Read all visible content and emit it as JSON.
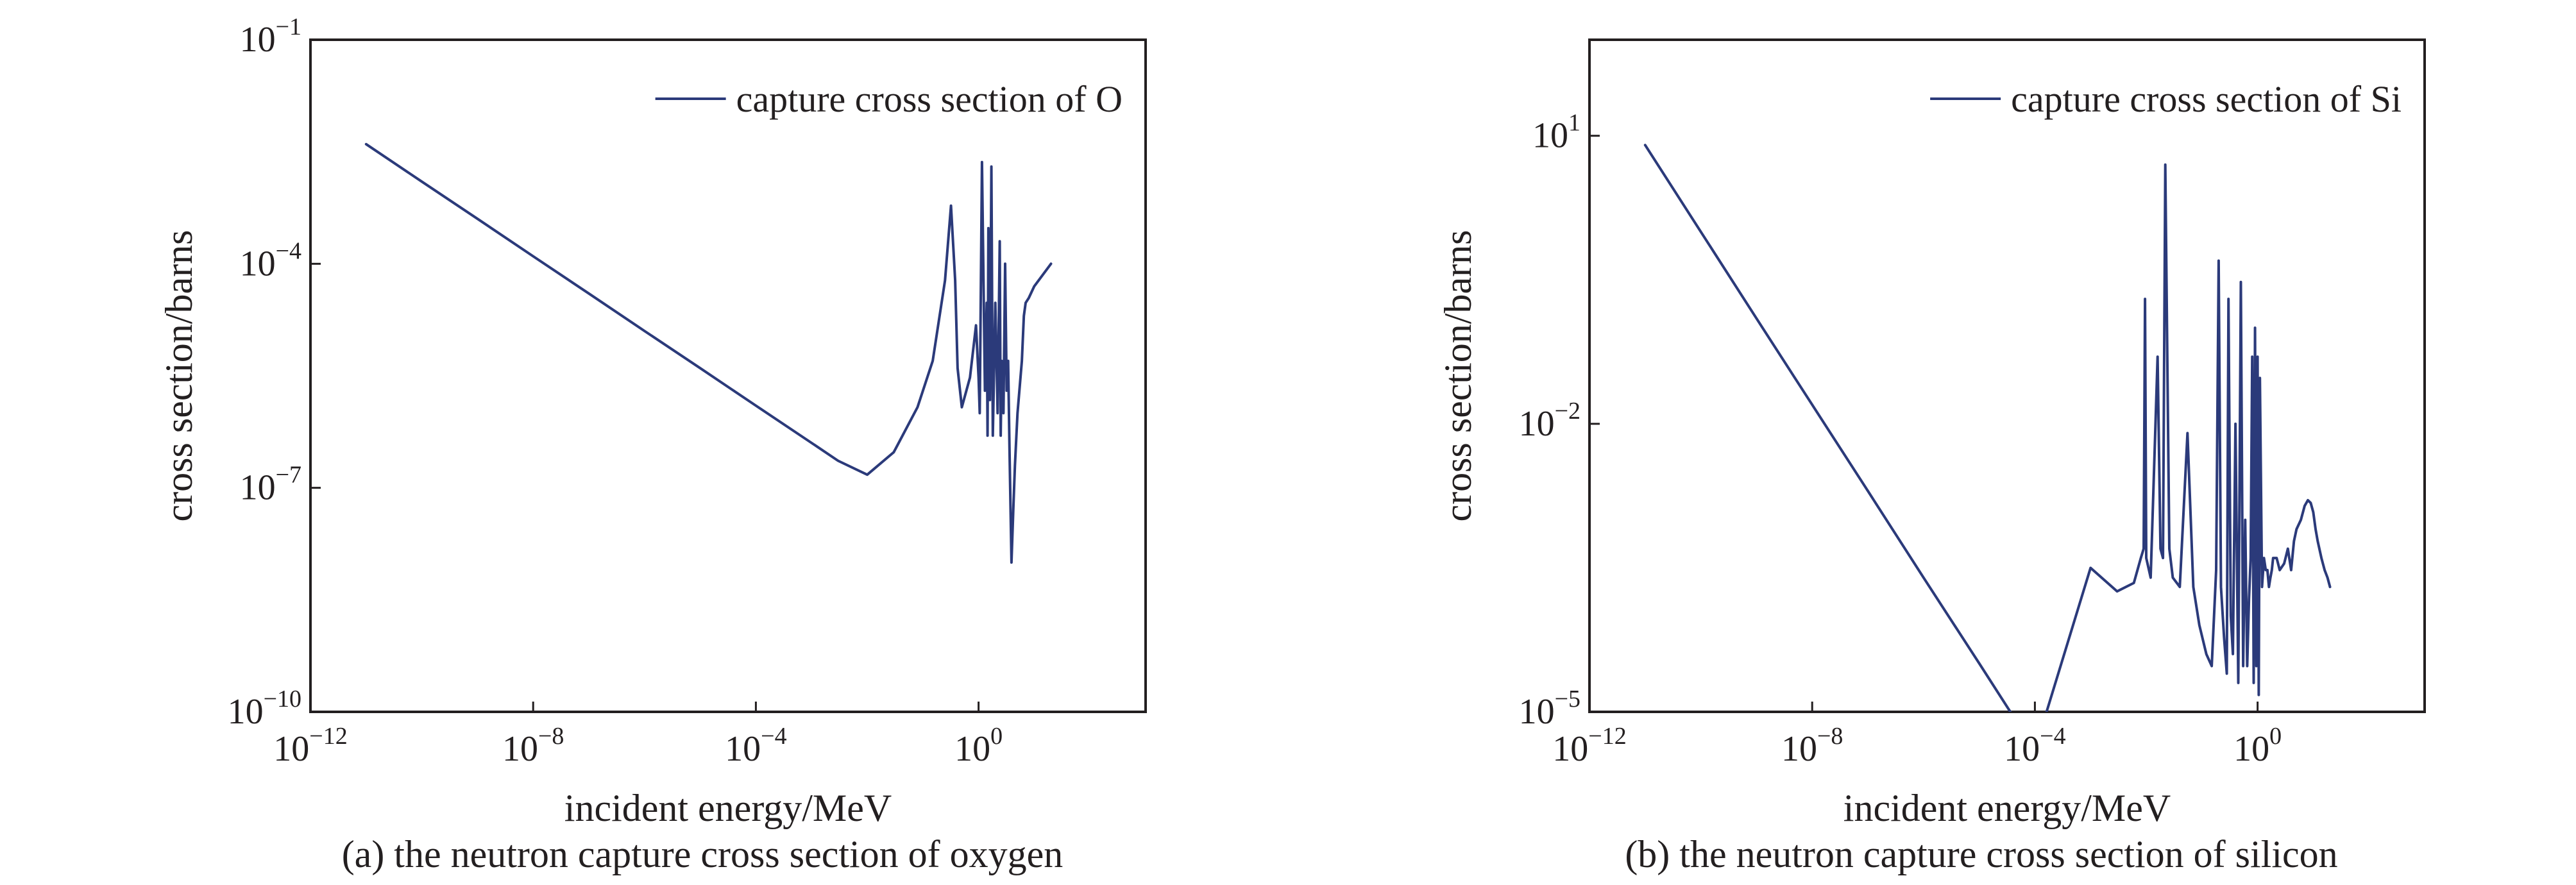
{
  "chart_data": [
    {
      "type": "line",
      "title": "",
      "caption": "(a) the neutron capture cross section of oxygen",
      "xlabel": "incident energy/MeV",
      "ylabel": "cross section/barns",
      "xscale": "log",
      "yscale": "log",
      "xlim": [
        1e-12,
        1000
      ],
      "ylim": [
        1e-10,
        0.1
      ],
      "xticks": [
        {
          "base": "10",
          "exp": "−12",
          "value": 1e-12
        },
        {
          "base": "10",
          "exp": "−8",
          "value": 1e-08
        },
        {
          "base": "10",
          "exp": "−4",
          "value": 0.0001
        },
        {
          "base": "10",
          "exp": "0",
          "value": 1
        }
      ],
      "yticks": [
        {
          "base": "10",
          "exp": "−10",
          "value": 1e-10
        },
        {
          "base": "10",
          "exp": "−7",
          "value": 1e-07
        },
        {
          "base": "10",
          "exp": "−4",
          "value": 0.0001
        },
        {
          "base": "10",
          "exp": "−1",
          "value": 0.1
        }
      ],
      "legend_position": "top-right",
      "color": "#2b3a7a",
      "series": [
        {
          "name": "capture cross section of O",
          "x": [
            1e-11,
            1e-10,
            1e-09,
            1e-08,
            1e-07,
            1e-06,
            1e-05,
            0.0001,
            0.001,
            0.003,
            0.01,
            0.03,
            0.08,
            0.15,
            0.25,
            0.32,
            0.38,
            0.42,
            0.5,
            0.7,
            0.9,
            1.0,
            1.05,
            1.15,
            1.3,
            1.4,
            1.45,
            1.5,
            1.6,
            1.7,
            1.8,
            2.0,
            2.2,
            2.4,
            2.5,
            2.6,
            2.8,
            3.0,
            3.2,
            3.4,
            3.6,
            3.9,
            4.2,
            4.5,
            5.0,
            6.0,
            6.5,
            7.0,
            8.0,
            10.0,
            20.0
          ],
          "y": [
            0.004,
            0.00126,
            0.0004,
            0.000126,
            4e-05,
            1.26e-05,
            4e-06,
            1.26e-06,
            4e-07,
            2.3e-07,
            1.5e-07,
            3e-07,
            1.2e-06,
            5e-06,
            6e-05,
            0.0006,
            6e-05,
            4e-06,
            1.2e-06,
            3e-06,
            1.5e-05,
            3e-06,
            1e-06,
            0.0023,
            2e-06,
            3e-05,
            5e-07,
            0.0003,
            1.5e-06,
            0.002,
            5e-07,
            3e-05,
            1e-06,
            0.0002,
            5e-07,
            5e-06,
            1e-06,
            0.0001,
            2e-06,
            5e-06,
            3e-07,
            1e-08,
            5e-08,
            2e-07,
            1e-06,
            5e-06,
            2e-05,
            3e-05,
            3.5e-05,
            5e-05,
            0.0001
          ]
        }
      ]
    },
    {
      "type": "line",
      "title": "",
      "caption": "(b) the neutron capture cross section of silicon",
      "xlabel": "incident energy/MeV",
      "ylabel": "cross section/barns",
      "xscale": "log",
      "yscale": "log",
      "xlim": [
        1e-12,
        1000
      ],
      "ylim": [
        1e-05,
        100
      ],
      "xticks": [
        {
          "base": "10",
          "exp": "−12",
          "value": 1e-12
        },
        {
          "base": "10",
          "exp": "−8",
          "value": 1e-08
        },
        {
          "base": "10",
          "exp": "−4",
          "value": 0.0001
        },
        {
          "base": "10",
          "exp": "0",
          "value": 1
        }
      ],
      "yticks": [
        {
          "base": "10",
          "exp": "−5",
          "value": 1e-05
        },
        {
          "base": "10",
          "exp": "−2",
          "value": 0.01
        },
        {
          "base": "10",
          "exp": "1",
          "value": 10
        }
      ],
      "legend_position": "top-right",
      "color": "#2b3a7a",
      "series": [
        {
          "name": "capture cross section of Si",
          "x": [
            1e-11,
            1e-10,
            1e-09,
            1e-08,
            1e-07,
            1e-06,
            1e-05,
            0.0001,
            0.001,
            0.003,
            0.006,
            0.008,
            0.009,
            0.0095,
            0.01,
            0.012,
            0.016,
            0.018,
            0.02,
            0.022,
            0.026,
            0.03,
            0.04,
            0.055,
            0.07,
            0.09,
            0.12,
            0.15,
            0.18,
            0.2,
            0.22,
            0.25,
            0.28,
            0.3,
            0.33,
            0.36,
            0.4,
            0.45,
            0.5,
            0.55,
            0.6,
            0.65,
            0.7,
            0.75,
            0.8,
            0.85,
            0.9,
            0.95,
            1.0,
            1.05,
            1.1,
            1.2,
            1.3,
            1.4,
            1.5,
            1.6,
            1.7,
            1.8,
            1.9,
            2.0,
            2.2,
            2.5,
            3.0,
            3.5,
            4.0,
            4.5,
            5.0,
            6.0,
            7.0,
            8.0,
            9.0,
            10.0,
            11.0,
            12.0,
            14.0,
            16.0,
            18.0,
            20.0
          ],
          "y": [
            8.0,
            1.0,
            0.125,
            0.0158,
            0.002,
            0.00025,
            3.2e-05,
            4e-06,
            0.000316,
            0.00018,
            0.00022,
            0.0004,
            0.0005,
            0.2,
            0.0004,
            0.00025,
            0.05,
            0.0005,
            0.0004,
            5.0,
            0.0005,
            0.00025,
            0.0002,
            0.008,
            0.0002,
            8e-05,
            4e-05,
            3e-05,
            0.0003,
            0.5,
            0.0002,
            6e-05,
            2.5e-05,
            0.2,
            0.0001,
            4e-05,
            0.01,
            2e-05,
            0.3,
            3e-05,
            0.001,
            3e-05,
            0.00015,
            0.0004,
            0.05,
            2e-05,
            0.1,
            3e-05,
            0.05,
            1.5e-05,
            0.03,
            0.0002,
            0.0004,
            0.0003,
            0.0003,
            0.0002,
            0.00025,
            0.0003,
            0.0004,
            0.0004,
            0.0004,
            0.0003,
            0.00035,
            0.0005,
            0.0003,
            0.0006,
            0.0008,
            0.001,
            0.0014,
            0.0016,
            0.0015,
            0.0012,
            0.0008,
            0.0006,
            0.0004,
            0.0003,
            0.00025,
            0.0002
          ]
        }
      ]
    }
  ]
}
